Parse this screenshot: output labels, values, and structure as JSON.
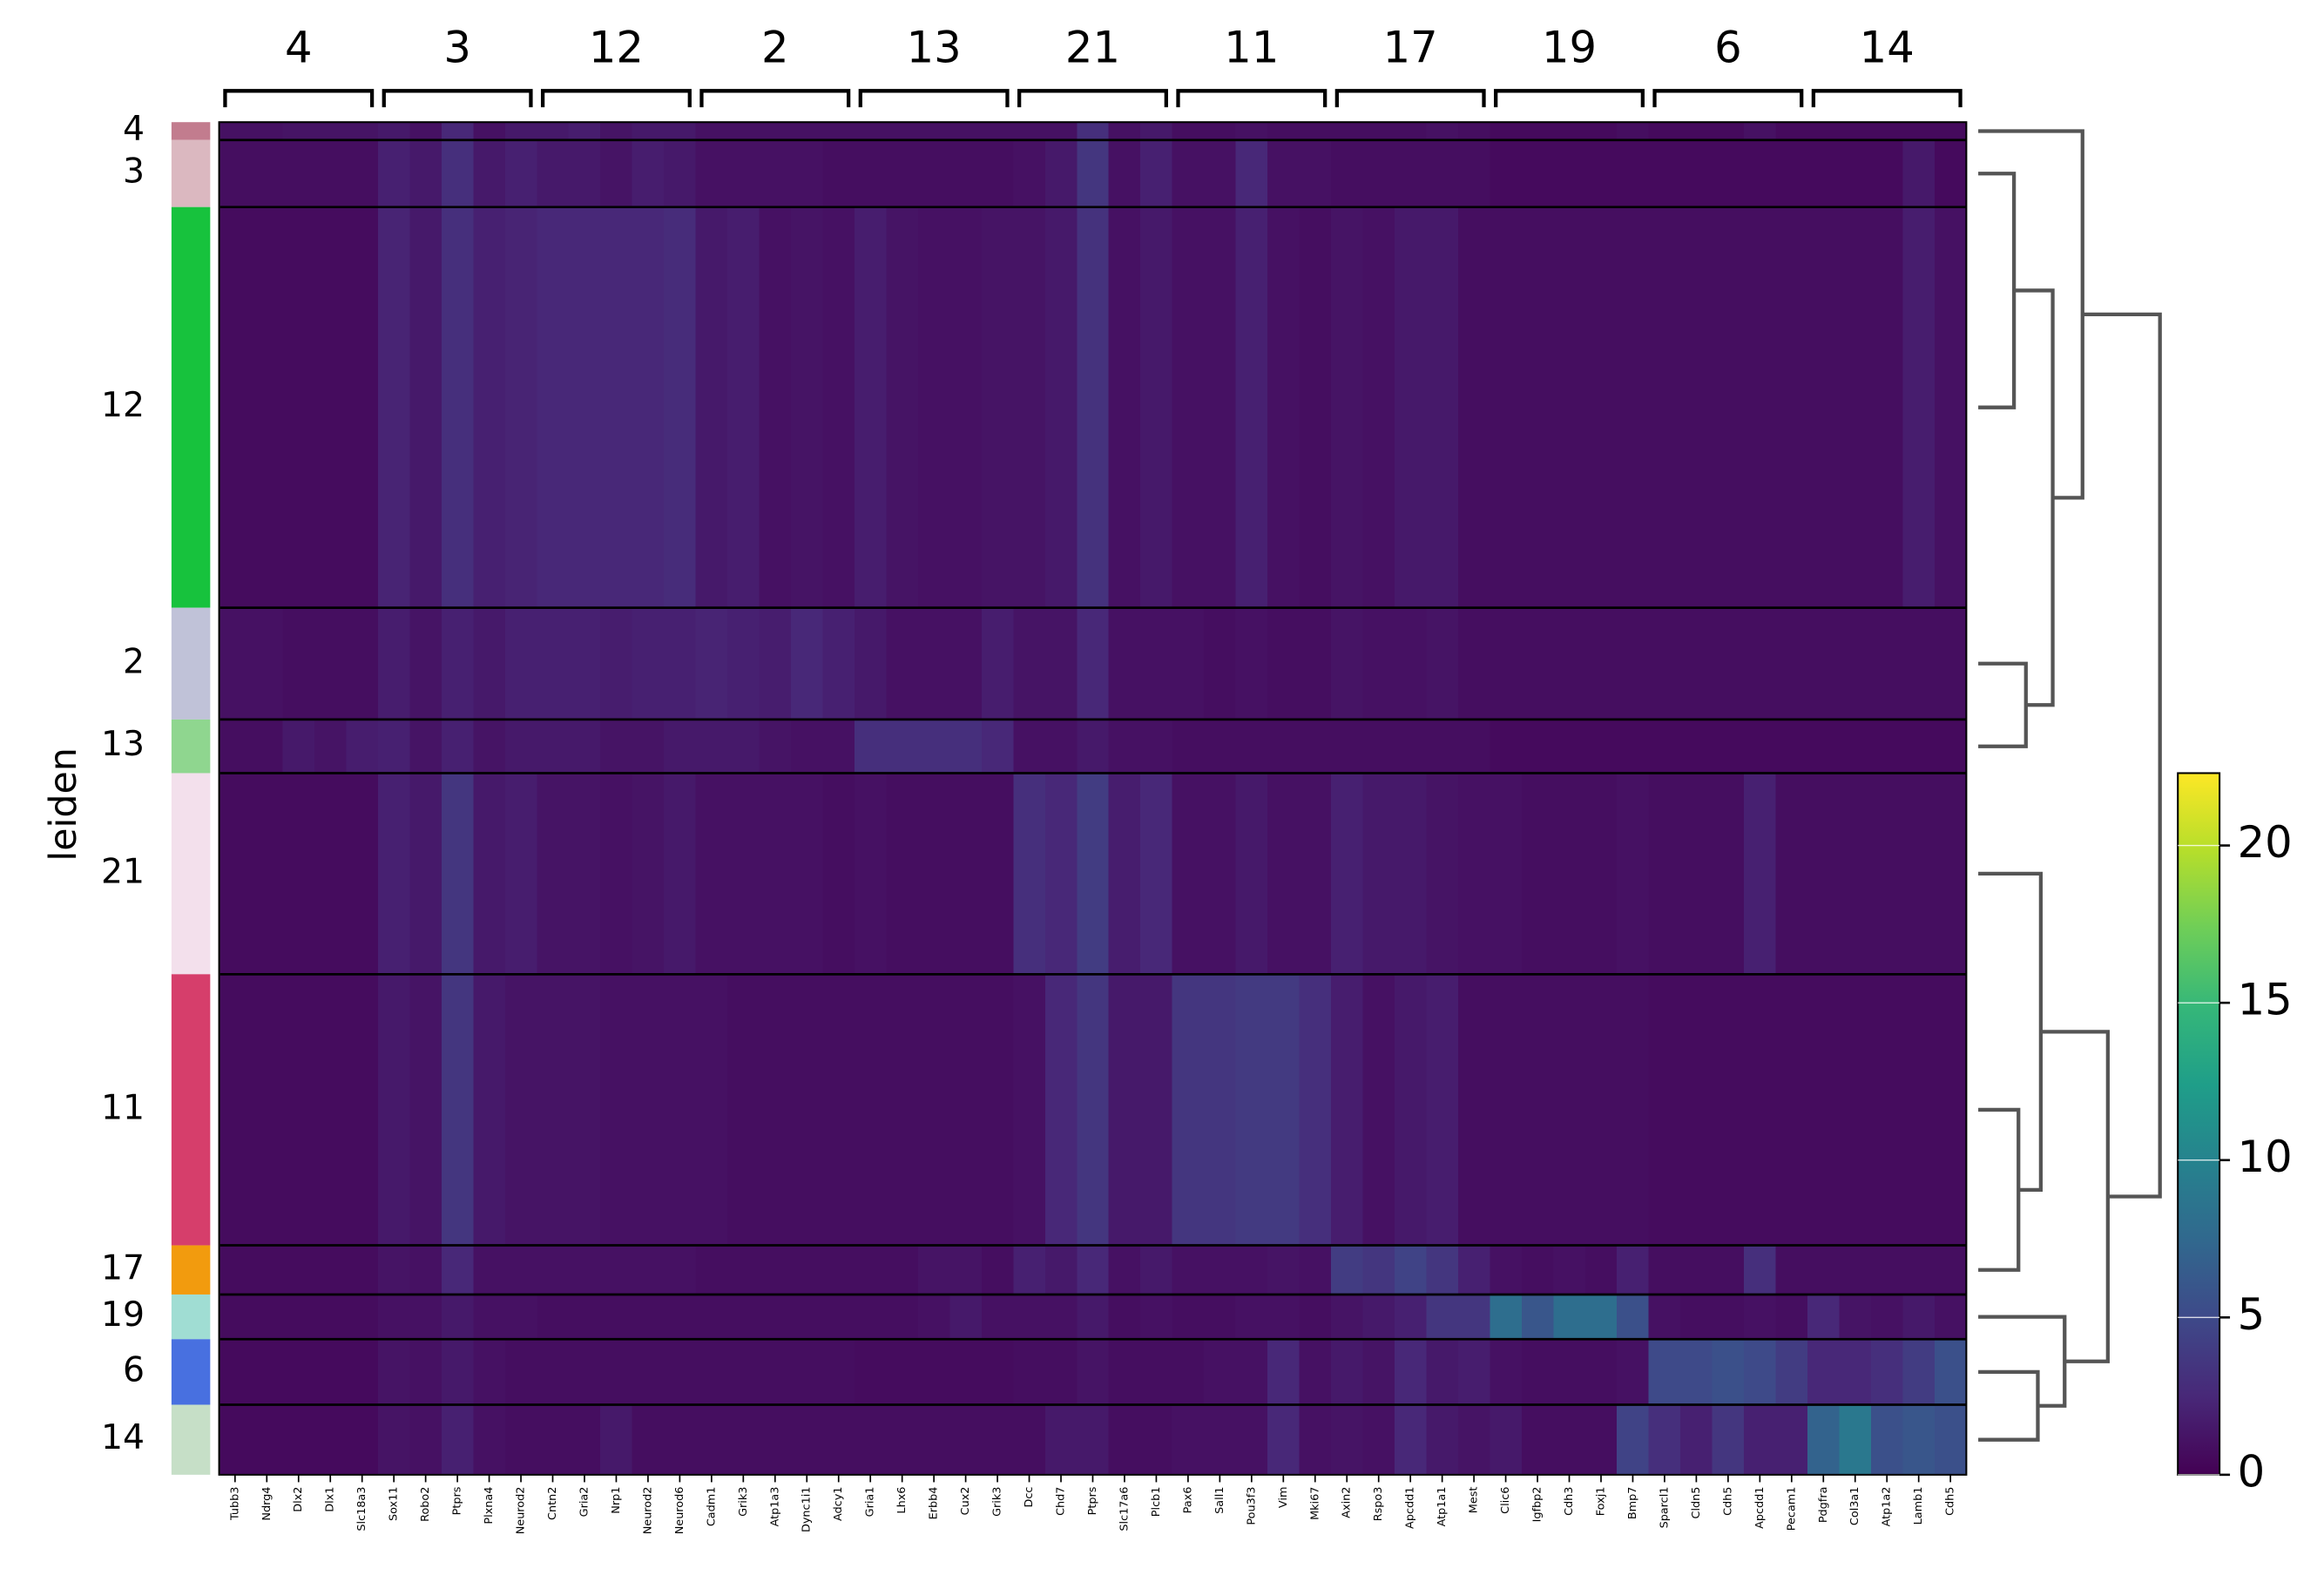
{
  "chart_data": {
    "type": "heatmap",
    "y_label": "leiden",
    "clusters": [
      "4",
      "3",
      "12",
      "2",
      "13",
      "21",
      "11",
      "17",
      "19",
      "6",
      "14"
    ],
    "cluster_colors": [
      "#c27c8e",
      "#dbb8c0",
      "#17c23d",
      "#c0c2d8",
      "#8fd68f",
      "#f3e0ec",
      "#d63e6b",
      "#f29b0e",
      "#a0ddd3",
      "#4870e0",
      "#c6dfc7"
    ],
    "x": [
      "Tubb3",
      "Ndrg4",
      "Dlx2",
      "Dlx1",
      "Slc18a3",
      "Sox11",
      "Robo2",
      "Ptprs",
      "Plxna4",
      "Neurod2",
      "Cntn2",
      "Gria2",
      "Nrp1",
      "Neurod2",
      "Neurod6",
      "Cadm1",
      "Grik3",
      "Atp1a3",
      "Dync1i1",
      "Adcy1",
      "Gria1",
      "Lhx6",
      "Erbb4",
      "Cux2",
      "Grik3",
      "Dcc",
      "Chd7",
      "Ptprs",
      "Slc17a6",
      "Plcb1",
      "Pax6",
      "Sall1",
      "Pou3f3",
      "Vim",
      "Mki67",
      "Axin2",
      "Rspo3",
      "Apcdd1",
      "Atp1a1",
      "Mest",
      "Clic6",
      "Igfbp2",
      "Cdh3",
      "Foxj1",
      "Bmp7",
      "Sparcl1",
      "Cldn5",
      "Cdh5",
      "Apcdd1",
      "Pecam1",
      "Pdgfra",
      "Col3a1",
      "Atp1a2",
      "Lamb1",
      "Cdh5"
    ],
    "values": [
      [
        1,
        1,
        1.2,
        1.2,
        1.2,
        1.5,
        1,
        2.5,
        1,
        1.5,
        1.5,
        1.8,
        1.2,
        1.5,
        1.5,
        1,
        1,
        1,
        1,
        1,
        1,
        1,
        1,
        1,
        1,
        1,
        1,
        3,
        1,
        1.5,
        0.8,
        0.8,
        1,
        0.8,
        0.8,
        0.8,
        0.8,
        0.8,
        1,
        0.8,
        0.6,
        0.6,
        0.6,
        0.6,
        0.8,
        0.6,
        0.6,
        0.6,
        1,
        0.6,
        0.6,
        0.6,
        0.6,
        0.6,
        0.6
      ],
      [
        0.8,
        0.8,
        0.8,
        0.8,
        0.8,
        2,
        1.5,
        3,
        1.5,
        2,
        1.5,
        1.5,
        1.2,
        1.8,
        1.5,
        1,
        1,
        1,
        1,
        0.8,
        0.8,
        0.8,
        0.8,
        0.8,
        0.8,
        1,
        1.5,
        3.5,
        1,
        2,
        1,
        1,
        2.5,
        1,
        1,
        0.8,
        0.8,
        0.8,
        0.8,
        0.8,
        0.6,
        0.6,
        0.6,
        0.6,
        0.6,
        0.6,
        0.6,
        0.6,
        0.6,
        0.6,
        0.6,
        0.6,
        0.6,
        1.5,
        0.6
      ],
      [
        0.7,
        0.7,
        0.7,
        0.7,
        0.7,
        2.2,
        1.5,
        3,
        2,
        2.2,
        2.5,
        2.5,
        2.5,
        2.5,
        2.8,
        1.5,
        1.8,
        1,
        1.2,
        1,
        1.8,
        1.2,
        1,
        1,
        1.2,
        1.2,
        1.5,
        3.2,
        1,
        1.5,
        1,
        1,
        2,
        1,
        0.8,
        1.2,
        1,
        1.5,
        1.5,
        0.8,
        0.8,
        0.8,
        0.8,
        0.8,
        0.8,
        0.8,
        0.8,
        0.8,
        0.8,
        0.8,
        0.8,
        0.8,
        0.8,
        1.8,
        1
      ],
      [
        1,
        1,
        0.8,
        0.8,
        0.8,
        1.8,
        1.2,
        2,
        1.5,
        2,
        2,
        2,
        1.8,
        2,
        2,
        2.2,
        2,
        1.8,
        2.5,
        2,
        1.5,
        1,
        1,
        1,
        1.8,
        1.2,
        1.2,
        2.5,
        1,
        1,
        1,
        0.8,
        1,
        0.8,
        0.8,
        1.2,
        1,
        1,
        1.2,
        0.8,
        0.8,
        0.8,
        0.8,
        0.8,
        0.8,
        0.8,
        0.8,
        0.8,
        0.8,
        0.8,
        0.8,
        0.8,
        0.8,
        0.8,
        0.8
      ],
      [
        0.8,
        0.8,
        1.5,
        1.2,
        1.8,
        2,
        1.2,
        2,
        1.2,
        1.5,
        1.5,
        1.5,
        1.2,
        1.2,
        1.5,
        1.5,
        1.5,
        1.2,
        1,
        1,
        3,
        3,
        3,
        3,
        2.5,
        1,
        1,
        1.5,
        1,
        1,
        0.8,
        0.8,
        0.8,
        0.8,
        0.8,
        0.8,
        0.8,
        0.8,
        0.8,
        0.8,
        0.6,
        0.6,
        0.6,
        0.6,
        0.6,
        0.6,
        0.6,
        0.6,
        0.6,
        0.6,
        0.6,
        0.6,
        0.6,
        0.6,
        0.6
      ],
      [
        0.7,
        0.7,
        0.7,
        0.7,
        0.7,
        2,
        1.5,
        3.5,
        1.5,
        1.8,
        1.2,
        1.2,
        1,
        1.2,
        1.5,
        1,
        1,
        1,
        1,
        0.8,
        1,
        0.8,
        0.8,
        0.8,
        0.8,
        3,
        2.5,
        4,
        1.8,
        2.5,
        1,
        1,
        1.5,
        1,
        1,
        2,
        1.5,
        1.5,
        1.2,
        1,
        1,
        0.8,
        0.8,
        0.8,
        1,
        0.8,
        0.8,
        0.8,
        2,
        0.8,
        0.8,
        0.8,
        0.8,
        0.8,
        0.8
      ],
      [
        0.7,
        0.7,
        0.7,
        0.7,
        0.7,
        1.5,
        1.2,
        3.5,
        1.5,
        1.2,
        1.2,
        1.2,
        1,
        1,
        1,
        1,
        0.8,
        0.8,
        0.8,
        0.8,
        0.8,
        0.8,
        0.8,
        0.8,
        0.8,
        1,
        2.5,
        3.5,
        1.5,
        1.5,
        3.5,
        3.5,
        3.8,
        3.8,
        3,
        1.8,
        1,
        1.5,
        1.8,
        0.8,
        0.8,
        0.8,
        0.8,
        0.8,
        0.8,
        0.7,
        0.7,
        0.7,
        0.7,
        0.7,
        0.7,
        0.7,
        0.7,
        0.7,
        0.7
      ],
      [
        0.7,
        0.7,
        0.7,
        0.7,
        0.7,
        1.2,
        1,
        2.5,
        1,
        1,
        1,
        1,
        1,
        1,
        1,
        0.8,
        0.8,
        0.8,
        0.8,
        0.8,
        0.8,
        0.8,
        1.2,
        1.2,
        0.8,
        2,
        1.5,
        2.5,
        1,
        1.5,
        1,
        1,
        1,
        1.2,
        1,
        4,
        3.5,
        4.5,
        3.5,
        2,
        1,
        0.8,
        1,
        0.8,
        2,
        0.8,
        0.8,
        0.8,
        3,
        0.8,
        0.8,
        0.8,
        0.8,
        0.8,
        0.8
      ],
      [
        0.7,
        0.7,
        0.7,
        0.7,
        0.7,
        1,
        1,
        1.5,
        1,
        1,
        0.8,
        0.8,
        0.8,
        0.8,
        0.8,
        0.8,
        0.8,
        0.8,
        0.8,
        0.8,
        0.8,
        0.8,
        1,
        1.5,
        1,
        1,
        1,
        1.5,
        0.8,
        1,
        0.8,
        0.8,
        1,
        1,
        0.8,
        1.2,
        1.5,
        2,
        3.5,
        3.5,
        8,
        6,
        8,
        8,
        5.5,
        1,
        0.8,
        0.8,
        1,
        0.8,
        2.5,
        1.2,
        1,
        1.5,
        1
      ],
      [
        0.6,
        0.6,
        0.6,
        0.6,
        0.6,
        1.2,
        1,
        1.5,
        1,
        0.8,
        0.8,
        0.8,
        0.8,
        0.8,
        0.8,
        0.8,
        0.8,
        0.8,
        0.8,
        0.8,
        0.7,
        0.7,
        0.7,
        0.7,
        0.7,
        0.8,
        0.8,
        1.2,
        0.8,
        0.8,
        0.8,
        1,
        1,
        2.5,
        1,
        1.5,
        1.2,
        2.5,
        1.5,
        1.8,
        1,
        0.8,
        0.8,
        0.8,
        1,
        5,
        5,
        5.5,
        5,
        4,
        2.5,
        2.5,
        3,
        4,
        5.5
      ],
      [
        0.6,
        0.6,
        0.6,
        0.6,
        0.6,
        1.2,
        1,
        2,
        1,
        0.8,
        0.8,
        0.8,
        1.5,
        0.8,
        0.8,
        0.8,
        0.8,
        0.8,
        0.8,
        0.8,
        0.8,
        0.8,
        0.8,
        0.8,
        0.8,
        0.8,
        1.5,
        1.5,
        0.8,
        0.8,
        1,
        1,
        1,
        2.5,
        1,
        1.2,
        1,
        2.5,
        1.5,
        1.2,
        1.5,
        0.8,
        0.8,
        0.8,
        4.5,
        3,
        2,
        3.5,
        2,
        2,
        7,
        9,
        5.5,
        6,
        5.5
      ]
    ],
    "colormap": "viridis",
    "zlim": [
      0,
      22.3
    ],
    "zticks": [
      0,
      5,
      10,
      15,
      20
    ]
  }
}
